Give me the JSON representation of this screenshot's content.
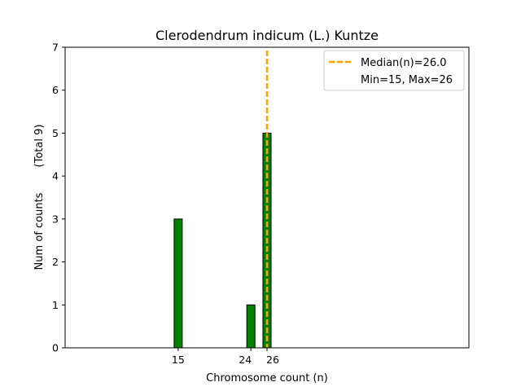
{
  "chart_data": {
    "type": "bar",
    "title": "Clerodendrum indicum (L.) Kuntze",
    "xlabel": "Chromosome count (n)",
    "ylabel": "Num of counts",
    "ylabel_extra": "(Total 9)",
    "x": [
      15,
      24,
      26
    ],
    "values": [
      3,
      1,
      5
    ],
    "xlim": [
      1,
      51
    ],
    "ylim": [
      0,
      7
    ],
    "xticks": [
      15,
      24,
      26
    ],
    "yticks": [
      0,
      1,
      2,
      3,
      4,
      5,
      6,
      7
    ],
    "median": 26.0,
    "min": 15,
    "max": 26,
    "bar_color": "#008000",
    "bar_edge_color": "#000000",
    "median_color": "#FFA500",
    "grid": false,
    "legend_position": "top-right",
    "legend": {
      "median_label": "Median(n)=26.0",
      "range_label": "Min=15, Max=26"
    }
  }
}
